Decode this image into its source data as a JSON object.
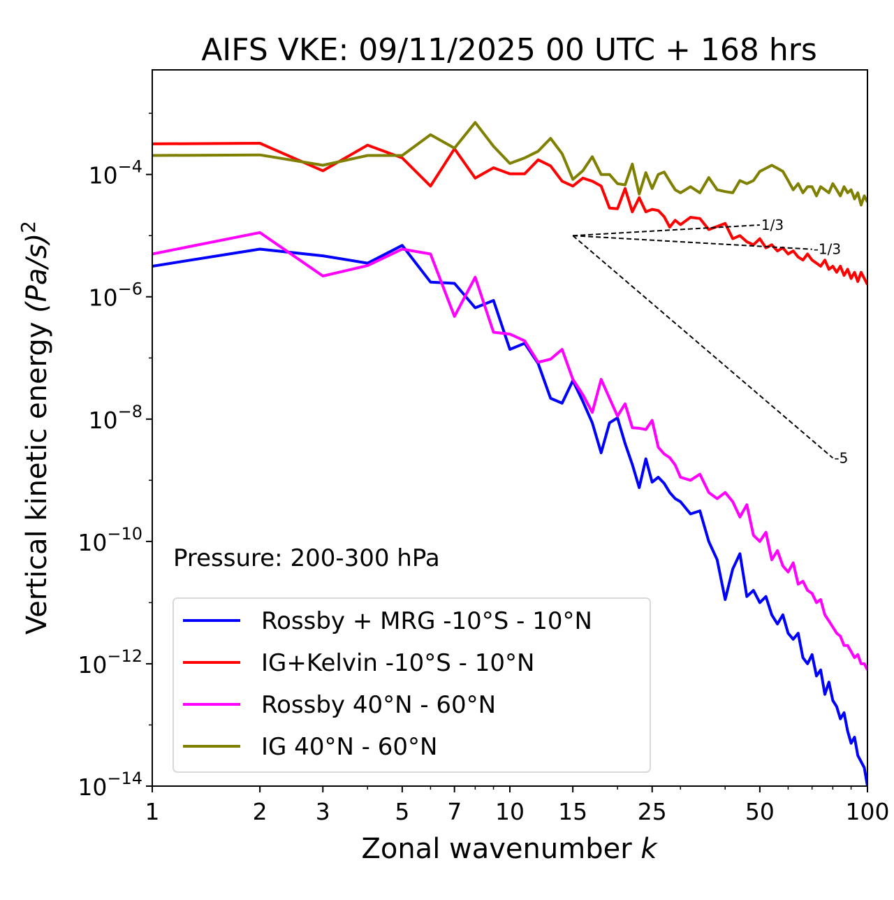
{
  "chart_data": {
    "type": "line",
    "title": "AIFS VKE: 09/11/2025 00 UTC + 168 hrs",
    "xlabel": "Zonal wavenumber",
    "xlabel_var": "k",
    "ylabel": "Vertical kinetic energy",
    "ylabel_units": "(Pa/s)",
    "ylabel_power": "2",
    "x_scale": "log",
    "y_scale": "log",
    "xlim": [
      1,
      100
    ],
    "ylim_log10": [
      -14,
      -2.29
    ],
    "x_ticks": [
      1,
      2,
      3,
      5,
      7,
      10,
      15,
      25,
      50,
      100
    ],
    "x_tick_labels": [
      "1",
      "2",
      "3",
      "5",
      "7",
      "10",
      "15",
      "25",
      "50",
      "100"
    ],
    "y_ticks_log10": [
      -14,
      -12,
      -10,
      -8,
      -6,
      -4
    ],
    "y_tick_labels": [
      {
        "base": "10",
        "exp": "−14"
      },
      {
        "base": "10",
        "exp": "−12"
      },
      {
        "base": "10",
        "exp": "−10"
      },
      {
        "base": "10",
        "exp": "−8"
      },
      {
        "base": "10",
        "exp": "−6"
      },
      {
        "base": "10",
        "exp": "−4"
      }
    ],
    "annotation": "Pressure: 200-300 hPa",
    "legend_placement": "lower-left",
    "x": [
      1,
      2,
      3,
      4,
      5,
      6,
      7,
      8,
      9,
      10,
      11,
      12,
      13,
      14,
      15,
      16,
      17,
      18,
      19,
      20,
      21,
      22,
      23,
      24,
      25,
      26,
      27,
      28,
      29,
      30,
      32,
      34,
      36,
      38,
      40,
      42,
      44,
      46,
      48,
      50,
      52,
      54,
      56,
      58,
      60,
      62,
      64,
      66,
      68,
      70,
      72,
      74,
      76,
      78,
      80,
      82,
      84,
      86,
      88,
      90,
      92,
      94,
      96,
      98,
      100
    ],
    "series": [
      {
        "name": "Rossby + MRG -10°S - 10°N",
        "color": "#0000ff",
        "log10_values": [
          -5.5,
          -5.22,
          -5.33,
          -5.45,
          -5.16,
          -5.76,
          -5.78,
          -6.18,
          -6.06,
          -6.86,
          -6.76,
          -7.09,
          -7.66,
          -7.74,
          -7.37,
          -7.71,
          -8.06,
          -8.55,
          -8.06,
          -7.98,
          -8.4,
          -8.74,
          -9.12,
          -8.65,
          -9.03,
          -8.95,
          -9.05,
          -9.2,
          -9.3,
          -9.35,
          -9.55,
          -9.5,
          -10.0,
          -10.3,
          -10.95,
          -10.45,
          -10.2,
          -10.9,
          -10.8,
          -11.0,
          -10.9,
          -11.2,
          -11.35,
          -11.2,
          -11.5,
          -11.6,
          -11.5,
          -11.9,
          -12.0,
          -11.85,
          -12.2,
          -12.1,
          -12.5,
          -12.3,
          -12.6,
          -12.7,
          -12.9,
          -12.8,
          -13.1,
          -13.3,
          -13.2,
          -13.5,
          -13.6,
          -13.7,
          -14.0
        ]
      },
      {
        "name": "IG+Kelvin -10°S - 10°N",
        "color": "#ff0000",
        "log10_values": [
          -3.5,
          -3.49,
          -3.94,
          -3.52,
          -3.73,
          -4.19,
          -3.58,
          -4.06,
          -3.89,
          -3.99,
          -3.99,
          -3.76,
          -3.86,
          -4.11,
          -4.19,
          -4.06,
          -4.11,
          -4.19,
          -4.55,
          -4.56,
          -4.23,
          -4.61,
          -4.38,
          -4.61,
          -4.57,
          -4.59,
          -4.69,
          -4.86,
          -4.75,
          -4.82,
          -4.7,
          -4.72,
          -4.9,
          -4.85,
          -4.8,
          -5.05,
          -5.0,
          -5.1,
          -5.15,
          -5.05,
          -5.2,
          -5.15,
          -5.25,
          -5.2,
          -5.3,
          -5.25,
          -5.35,
          -5.4,
          -5.3,
          -5.4,
          -5.45,
          -5.5,
          -5.4,
          -5.55,
          -5.5,
          -5.6,
          -5.5,
          -5.65,
          -5.55,
          -5.7,
          -5.6,
          -5.75,
          -5.6,
          -5.7,
          -5.8
        ]
      },
      {
        "name": "Rossby 40°N - 60°N",
        "color": "#ff00ff",
        "log10_values": [
          -5.3,
          -4.95,
          -5.66,
          -5.49,
          -5.22,
          -5.3,
          -6.32,
          -5.68,
          -6.58,
          -6.61,
          -6.72,
          -7.07,
          -7.02,
          -6.86,
          -7.35,
          -7.6,
          -7.89,
          -7.35,
          -7.66,
          -7.95,
          -7.75,
          -8.14,
          -8.15,
          -8.17,
          -8.02,
          -8.46,
          -8.57,
          -8.63,
          -8.75,
          -8.95,
          -9.0,
          -8.9,
          -9.2,
          -9.3,
          -9.2,
          -9.35,
          -9.6,
          -9.4,
          -9.9,
          -10.0,
          -9.85,
          -10.3,
          -10.15,
          -10.4,
          -10.5,
          -10.35,
          -10.7,
          -10.65,
          -10.8,
          -10.85,
          -11.0,
          -10.95,
          -11.2,
          -11.3,
          -11.4,
          -11.5,
          -11.55,
          -11.7,
          -11.7,
          -11.8,
          -11.9,
          -11.85,
          -12.0,
          -12.0,
          -12.1
        ]
      },
      {
        "name": "IG 40°N - 60°N",
        "color": "#808000",
        "log10_values": [
          -3.69,
          -3.68,
          -3.85,
          -3.69,
          -3.69,
          -3.35,
          -3.57,
          -3.15,
          -3.54,
          -3.82,
          -3.73,
          -3.62,
          -3.41,
          -3.66,
          -4.08,
          -3.94,
          -3.71,
          -4.0,
          -4.0,
          -4.15,
          -4.17,
          -3.83,
          -4.32,
          -3.97,
          -4.23,
          -4.0,
          -3.96,
          -4.11,
          -4.25,
          -4.3,
          -4.2,
          -4.3,
          -4.05,
          -4.25,
          -4.28,
          -4.3,
          -4.1,
          -4.15,
          -4.1,
          -3.95,
          -3.9,
          -3.85,
          -3.9,
          -3.95,
          -4.1,
          -4.25,
          -4.15,
          -4.3,
          -4.2,
          -4.2,
          -4.35,
          -4.2,
          -4.25,
          -4.3,
          -4.15,
          -4.25,
          -4.35,
          -4.2,
          -4.3,
          -4.25,
          -4.4,
          -4.3,
          -4.5,
          -4.35,
          -4.45
        ]
      }
    ],
    "reference_lines": [
      {
        "label": "1/3",
        "slope": 0.3333,
        "x0": 15,
        "log10_y0": -5,
        "x1": 50
      },
      {
        "label": "-1/3",
        "slope": -0.3333,
        "x0": 15,
        "log10_y0": -5,
        "x1": 70
      },
      {
        "label": "-5",
        "slope": -5,
        "x0": 15,
        "log10_y0": -5,
        "x1": 80
      }
    ]
  }
}
